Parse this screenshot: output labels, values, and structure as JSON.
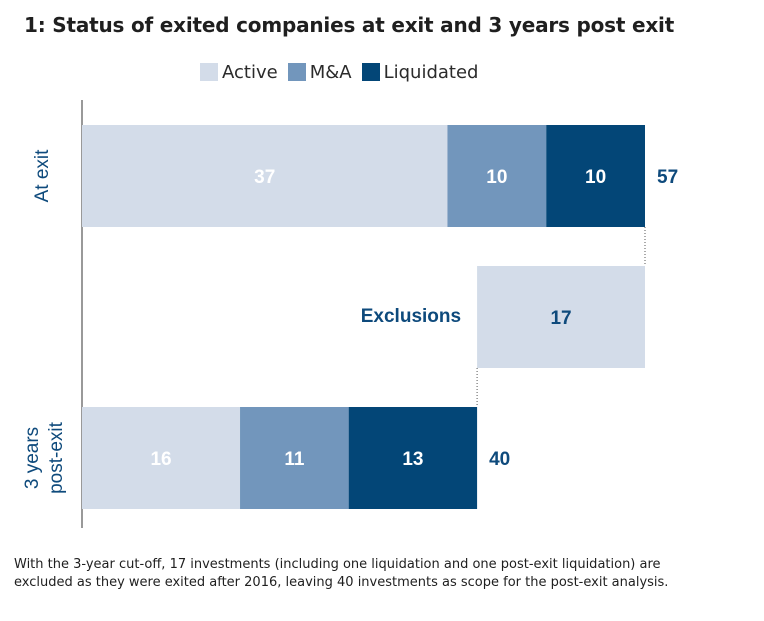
{
  "chart_data": {
    "type": "bar",
    "title": "1: Status of exited companies at exit and 3 years post exit",
    "legend_position": "top",
    "grid": false,
    "categories": [
      "At exit",
      "Exclusions",
      "3 years post-exit"
    ],
    "series": [
      {
        "name": "Active",
        "color": "#d3dce9",
        "values": [
          37,
          null,
          16
        ]
      },
      {
        "name": "M&A",
        "color": "#7296bc",
        "values": [
          10,
          null,
          11
        ]
      },
      {
        "name": "Liquidated",
        "color": "#034677",
        "values": [
          10,
          null,
          13
        ]
      }
    ],
    "exclusions": {
      "label": "Exclusions",
      "value": 17,
      "color": "#d3dce9"
    },
    "totals": [
      57,
      40
    ],
    "xlim": [
      0,
      57
    ]
  },
  "legend": {
    "items": [
      {
        "label": "Active",
        "color": "#d3dce9"
      },
      {
        "label": "M&A",
        "color": "#7296bc"
      },
      {
        "label": "Liquidated",
        "color": "#034677"
      }
    ]
  },
  "category_labels": {
    "at_exit": "At exit",
    "post_exit_line1": "3 years",
    "post_exit_line2": "post-exit"
  },
  "footnote": "With the 3-year cut-off, 17 investments (including one liquidation and one post-exit liquidation) are excluded as they were exited after 2016, leaving 40 investments as scope for the post-exit analysis.",
  "colors": {
    "label_text": "#0e4a7c",
    "value_text_light": "#ffffff"
  }
}
